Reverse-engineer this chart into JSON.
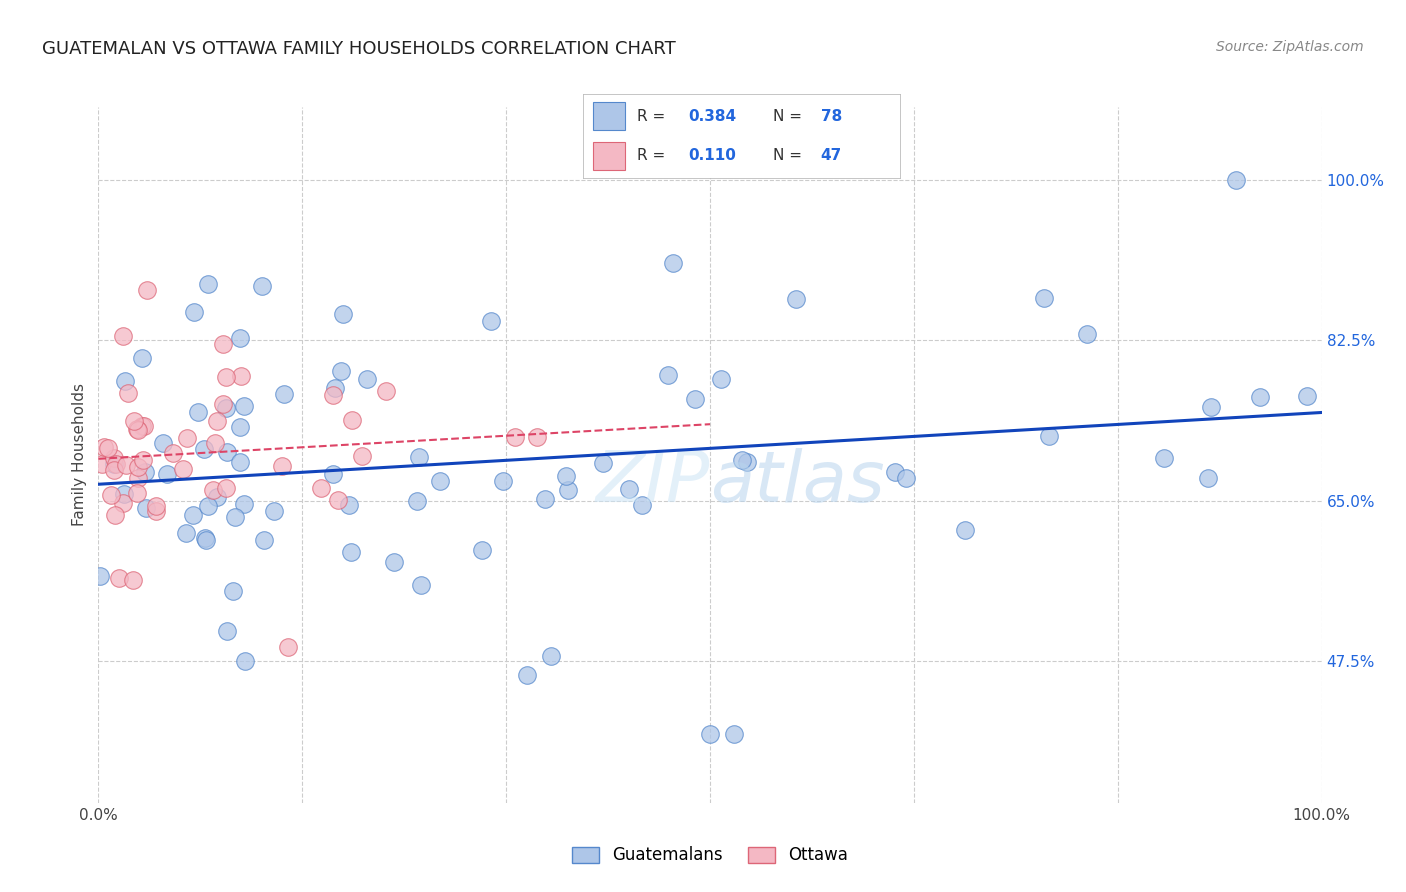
{
  "title": "GUATEMALAN VS OTTAWA FAMILY HOUSEHOLDS CORRELATION CHART",
  "source": "Source: ZipAtlas.com",
  "ylabel": "Family Households",
  "xlim": [
    0.0,
    1.0
  ],
  "ylim": [
    0.32,
    1.08
  ],
  "yticks": [
    0.475,
    0.65,
    0.825,
    1.0
  ],
  "ytick_labels": [
    "47.5%",
    "65.0%",
    "82.5%",
    "100.0%"
  ],
  "background_color": "#ffffff",
  "grid_color": "#cccccc",
  "guatemalan_color": "#aec6e8",
  "guatemalan_edge": "#5588cc",
  "ottawa_color": "#f4b8c4",
  "ottawa_edge": "#dd6677",
  "line_blue": "#1144bb",
  "line_pink": "#dd4466",
  "r_guatemalan": 0.384,
  "n_guatemalan": 78,
  "r_ottawa": 0.11,
  "n_ottawa": 47,
  "legend_r_color": "#2266dd",
  "watermark": "ZIPatlas"
}
